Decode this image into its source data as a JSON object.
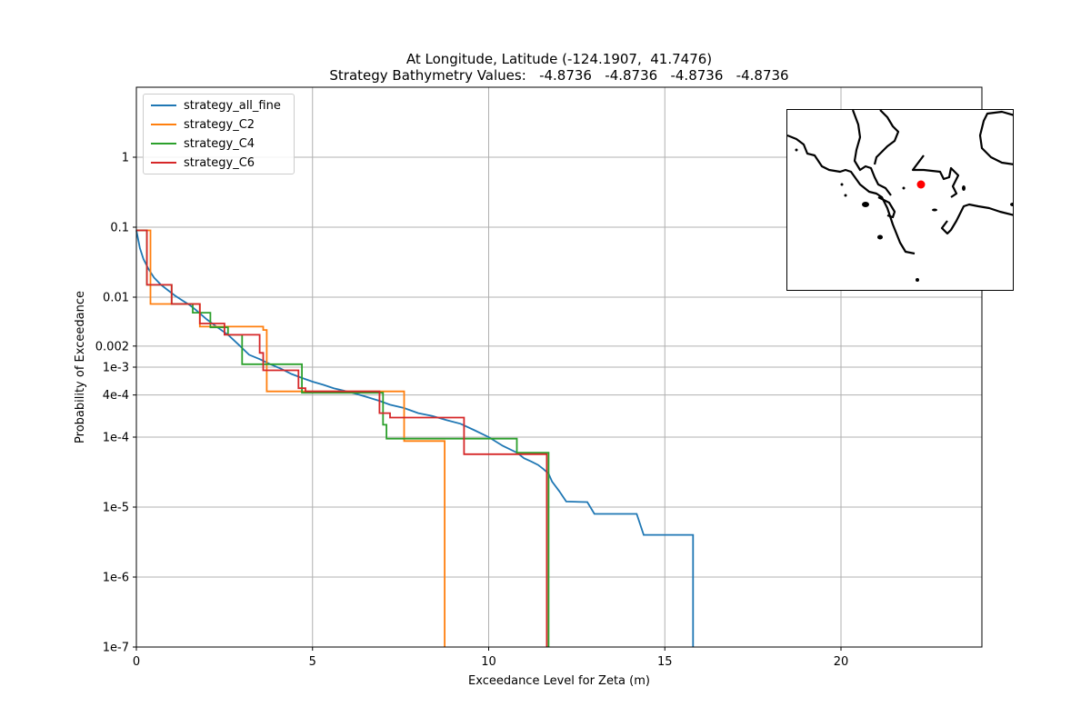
{
  "title_line1": "At Longitude, Latitude (-124.1907,  41.7476)",
  "title_line2": "Strategy Bathymetry Values:   -4.8736   -4.8736   -4.8736   -4.8736",
  "chart_data": {
    "type": "line",
    "step": true,
    "xlabel": "Exceedance Level for Zeta (m)",
    "ylabel": "Probability of Exceedance",
    "xlim": [
      0,
      24
    ],
    "ylim": [
      1e-07,
      10
    ],
    "yscale": "log",
    "grid": true,
    "legend_position": "top-left",
    "xticks": [
      {
        "value": 0,
        "label": "0"
      },
      {
        "value": 5,
        "label": "5"
      },
      {
        "value": 10,
        "label": "10"
      },
      {
        "value": 15,
        "label": "15"
      },
      {
        "value": 20,
        "label": "20"
      }
    ],
    "yticks": [
      {
        "value": 1,
        "label": "1"
      },
      {
        "value": 0.1,
        "label": "0.1"
      },
      {
        "value": 0.01,
        "label": "0.01"
      },
      {
        "value": 0.002,
        "label": "0.002"
      },
      {
        "value": 0.001,
        "label": "1e-3"
      },
      {
        "value": 0.0004,
        "label": "4e-4"
      },
      {
        "value": 0.0001,
        "label": "1e-4"
      },
      {
        "value": 1e-05,
        "label": "1e-5"
      },
      {
        "value": 1e-06,
        "label": "1e-6"
      },
      {
        "value": 1e-07,
        "label": "1e-7"
      }
    ],
    "series": [
      {
        "name": "strategy_all_fine",
        "color": "#1f77b4",
        "x": [
          0,
          0.1,
          0.2,
          0.35,
          0.5,
          0.7,
          0.9,
          1.1,
          1.3,
          1.5,
          1.7,
          2.0,
          2.3,
          2.6,
          2.9,
          3.2,
          3.5,
          3.8,
          4.1,
          4.4,
          4.7,
          5.0,
          5.3,
          5.6,
          5.9,
          6.2,
          6.5,
          6.9,
          7.2,
          7.6,
          8.0,
          8.4,
          8.8,
          9.2,
          9.6,
          10.0,
          10.4,
          10.8,
          11.0,
          11.2,
          11.4,
          11.55,
          11.7,
          11.8,
          12.0,
          12.2,
          12.8,
          13.0,
          14.2,
          14.4,
          15.8,
          15.8
        ],
        "y": [
          0.09,
          0.05,
          0.035,
          0.025,
          0.019,
          0.015,
          0.0125,
          0.0105,
          0.009,
          0.0078,
          0.0065,
          0.0048,
          0.0037,
          0.0029,
          0.0021,
          0.0015,
          0.0013,
          0.0011,
          0.00095,
          0.0008,
          0.0007,
          0.00062,
          0.00056,
          0.0005,
          0.00046,
          0.00042,
          0.00038,
          0.00033,
          0.00029,
          0.00026,
          0.00022,
          0.0002,
          0.000175,
          0.000155,
          0.000125,
          0.0001,
          7.5e-05,
          6e-05,
          5e-05,
          4.5e-05,
          4e-05,
          3.5e-05,
          3e-05,
          2.3e-05,
          1.7e-05,
          1.2e-05,
          1.18e-05,
          8e-06,
          8e-06,
          4e-06,
          4e-06,
          1e-07
        ]
      },
      {
        "name": "strategy_C2",
        "color": "#ff7f0e",
        "x": [
          0,
          0.4,
          0.4,
          1.8,
          1.8,
          3.6,
          3.6,
          3.7,
          3.7,
          7.6,
          7.6,
          8.75,
          8.75
        ],
        "y": [
          0.09,
          0.09,
          0.008,
          0.008,
          0.0038,
          0.0038,
          0.0034,
          0.0034,
          0.00045,
          0.00045,
          8.8e-05,
          8.8e-05,
          1e-07
        ]
      },
      {
        "name": "strategy_C4",
        "color": "#2ca02c",
        "x": [
          0,
          0.3,
          0.3,
          1.0,
          1.0,
          1.6,
          1.6,
          2.1,
          2.1,
          2.6,
          2.6,
          3.0,
          3.0,
          4.7,
          4.7,
          7.0,
          7.0,
          7.1,
          7.1,
          10.8,
          10.8,
          11.7,
          11.7
        ],
        "y": [
          0.09,
          0.09,
          0.015,
          0.015,
          0.008,
          0.008,
          0.006,
          0.006,
          0.0037,
          0.0037,
          0.0029,
          0.0029,
          0.0011,
          0.0011,
          0.00043,
          0.00043,
          0.00015,
          0.00015,
          9.5e-05,
          9.5e-05,
          6e-05,
          6e-05,
          1e-07
        ]
      },
      {
        "name": "strategy_C6",
        "color": "#d62728",
        "x": [
          0,
          0.3,
          0.3,
          1.0,
          1.0,
          1.8,
          1.8,
          2.5,
          2.5,
          3.5,
          3.5,
          3.6,
          3.6,
          4.6,
          4.6,
          4.8,
          4.8,
          6.9,
          6.9,
          7.2,
          7.2,
          9.3,
          9.3,
          11.65,
          11.65
        ],
        "y": [
          0.09,
          0.09,
          0.015,
          0.015,
          0.008,
          0.008,
          0.0042,
          0.0042,
          0.0029,
          0.0029,
          0.0016,
          0.0016,
          0.0009,
          0.0009,
          0.0005,
          0.0005,
          0.00045,
          0.00045,
          0.00022,
          0.00022,
          0.00019,
          0.00019,
          5.7e-05,
          5.7e-05,
          1e-07
        ]
      }
    ]
  },
  "inset_map": {
    "marker_color": "#ff0000",
    "coast_color": "#000000"
  }
}
